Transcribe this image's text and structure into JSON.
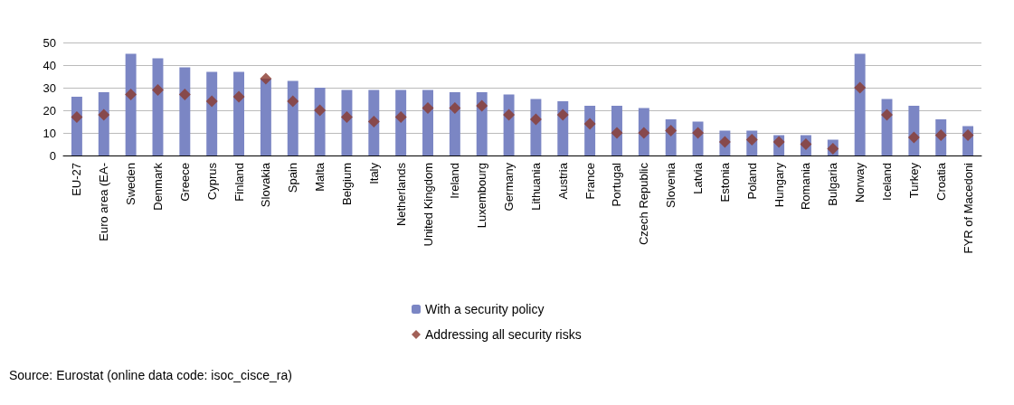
{
  "chart_data": {
    "type": "bar",
    "categories": [
      "EU-27",
      "Euro area (EA-",
      "Sweden",
      "Denmark",
      "Greece",
      "Cyprus",
      "Finland",
      "Slovakia",
      "Spain",
      "Malta",
      "Belgium",
      "Italy",
      "Netherlands",
      "United Kingdom",
      "Ireland",
      "Luxembourg",
      "Germany",
      "Lithuania",
      "Austria",
      "France",
      "Portugal",
      "Czech Republic",
      "Slovenia",
      "Latvia",
      "Estonia",
      "Poland",
      "Hungary",
      "Romania",
      "Bulgaria",
      "Norway",
      "Iceland",
      "Turkey",
      "Croatia",
      "FYR of Macedoni"
    ],
    "series": [
      {
        "name": "With a security policy",
        "color": "#7b86c4",
        "values": [
          26,
          28,
          45,
          43,
          39,
          37,
          37,
          34,
          33,
          30,
          29,
          29,
          29,
          29,
          28,
          28,
          27,
          25,
          24,
          22,
          22,
          21,
          16,
          15,
          11,
          11,
          9,
          9,
          7,
          45,
          25,
          22,
          16,
          13
        ]
      },
      {
        "name": "Addressing all security risks",
        "type": "scatter",
        "marker": "diamond",
        "color": "#8b3a2e",
        "values": [
          17,
          18,
          27,
          29,
          27,
          24,
          26,
          34,
          24,
          20,
          17,
          15,
          17,
          21,
          21,
          22,
          18,
          16,
          18,
          14,
          10,
          10,
          11,
          10,
          6,
          7,
          6,
          5,
          3,
          30,
          18,
          8,
          9,
          9
        ]
      }
    ],
    "ylim": [
      0,
      50
    ],
    "yticks": [
      0,
      10,
      20,
      30,
      40,
      50
    ],
    "grid": "y",
    "legend": "bottom",
    "annotations": [
      "Source: Eurostat (online data code: isoc_cisce_ra)"
    ]
  }
}
